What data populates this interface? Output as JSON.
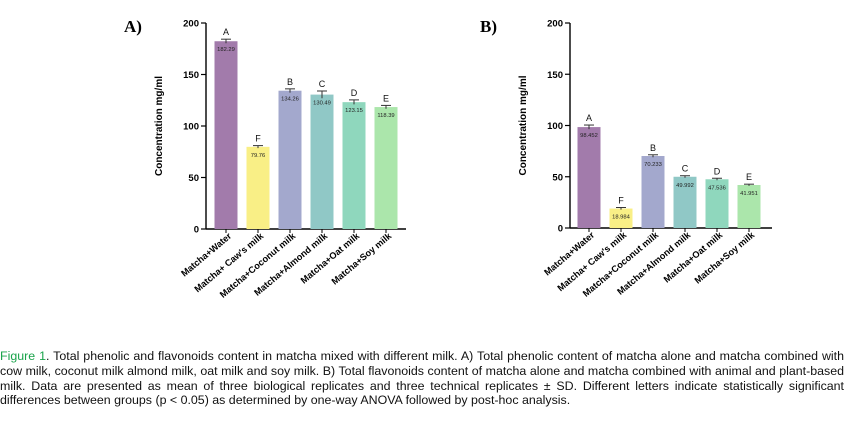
{
  "chart_data": [
    {
      "panel": "A)",
      "type": "bar",
      "ylabel": "Concentration mg/ml",
      "ylim": [
        0,
        200
      ],
      "yticks": [
        0,
        50,
        100,
        150,
        200
      ],
      "categories": [
        "Matcha+Water",
        "Matcha+ Caw's milk",
        "Matcha+Coconut milk",
        "Matcha+Almond milk",
        "Matcha+Oat milk",
        "Matcha+Soy milk"
      ],
      "values": [
        182.29,
        79.76,
        134.26,
        130.49,
        123.15,
        118.39
      ],
      "value_labels": [
        "182.29",
        "79.76",
        "134.26",
        "130.49",
        "123.15",
        "118.39"
      ],
      "sd": [
        2.0,
        1.2,
        1.8,
        3.5,
        2.2,
        1.6
      ],
      "letters": [
        "A",
        "F",
        "B",
        "C",
        "D",
        "E"
      ],
      "colors": [
        "#a27bab",
        "#f9ef86",
        "#a3a8cd",
        "#90c8c6",
        "#8fd7bd",
        "#abe6ab"
      ]
    },
    {
      "panel": "B)",
      "type": "bar",
      "ylabel": "Concentration mg/ml",
      "ylim": [
        0,
        200
      ],
      "yticks": [
        0,
        50,
        100,
        150,
        200
      ],
      "categories": [
        "Matcha+Water",
        "Matcha+ Caw's milk",
        "Matcha+Coconut milk",
        "Matcha+Almond milk",
        "Matcha+Oat milk",
        "Matcha+Soy milk"
      ],
      "values": [
        98.452,
        18.984,
        70.233,
        49.992,
        47.536,
        41.951
      ],
      "value_labels": [
        "98.452",
        "18.984",
        "70.233",
        "49.992",
        "47.536",
        "41.951"
      ],
      "sd": [
        2.0,
        1.0,
        1.2,
        1.0,
        1.0,
        0.8
      ],
      "letters": [
        "A",
        "F",
        "B",
        "C",
        "D",
        "E"
      ],
      "colors": [
        "#a27bab",
        "#f9ef86",
        "#a3a8cd",
        "#90c8c6",
        "#8fd7bd",
        "#abe6ab"
      ]
    }
  ],
  "caption": {
    "figure_label": "Figure 1",
    "text": ". Total phenolic and flavonoids content in matcha mixed with different milk. A) Total phenolic content of matcha alone and matcha combined with cow milk, coconut milk almond milk, oat milk and soy milk. B) Total flavonoids content of matcha alone and matcha combined with animal and plant-based milk. Data are presented as mean of three biological replicates and three technical replicates ± SD. Different letters indicate statistically significant differences between groups (p < 0.05) as determined by one-way ANOVA followed by post-hoc analysis."
  }
}
